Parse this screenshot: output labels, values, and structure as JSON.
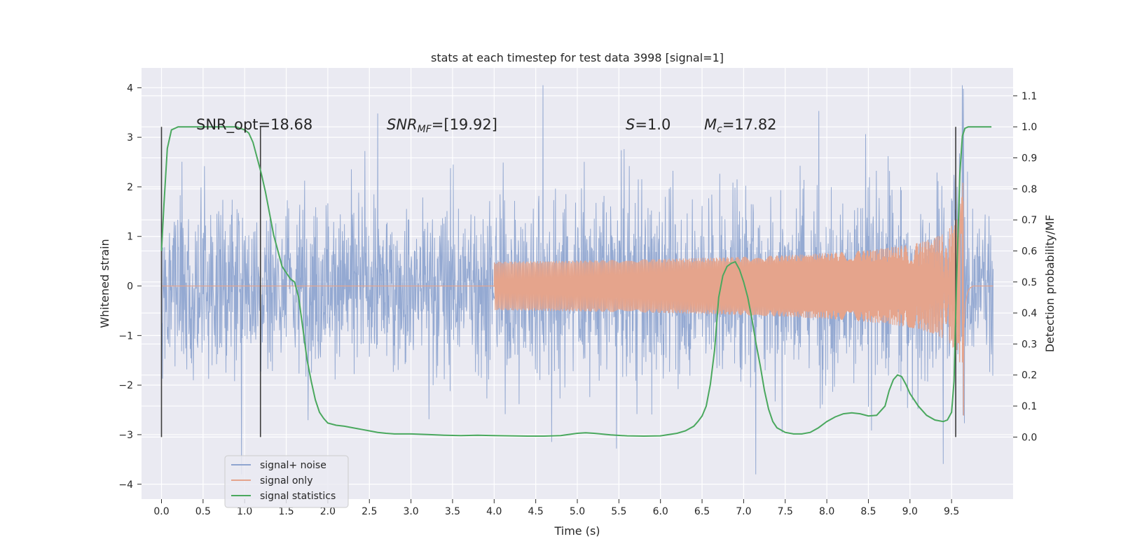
{
  "chart_data": {
    "type": "line",
    "title": "stats at each timestep for test data 3998 [signal=1]",
    "xlabel": "Time (s)",
    "ylabel_left": "Whitened strain",
    "ylabel_right": "Detection probability/MF",
    "xlim": [
      -0.24,
      10.24
    ],
    "ylim_left": [
      -4.3,
      4.4
    ],
    "ylim_right": [
      -0.2,
      1.19
    ],
    "x_ticks": [
      "0.0",
      "0.5",
      "1.0",
      "1.5",
      "2.0",
      "2.5",
      "3.0",
      "3.5",
      "4.0",
      "4.5",
      "5.0",
      "5.5",
      "6.0",
      "6.5",
      "7.0",
      "7.5",
      "8.0",
      "8.5",
      "9.0",
      "9.5"
    ],
    "y_ticks_left": [
      "4",
      "3",
      "2",
      "1",
      "0",
      "−1",
      "−2",
      "−3",
      "−4"
    ],
    "y_ticks_right": [
      "1.1",
      "1.0",
      "0.9",
      "0.8",
      "0.7",
      "0.6",
      "0.5",
      "0.4",
      "0.3",
      "0.2",
      "0.1",
      "0.0"
    ],
    "grid": true,
    "legend_position": "lower-left",
    "annotations": {
      "snr_opt": "SNR_opt=18.68",
      "snr_mf_base": "SNR",
      "snr_mf_sub": "MF",
      "snr_mf_value": "=[19.92]",
      "s_var": "S",
      "s_value": "=1.0",
      "mc_var": "M",
      "mc_sub": "c",
      "mc_value": "=17.82"
    },
    "vlines_x": [
      0.0,
      1.19,
      9.55
    ],
    "series": [
      {
        "name": "signal+ noise",
        "color": "#8fa5d0",
        "axis": "left",
        "description_range": [
          0.0,
          10.0
        ],
        "envelope": {
          "core_sigma": 0.85,
          "peak_max": 4.05,
          "peak_min": -3.8
        }
      },
      {
        "name": "signal only",
        "color": "#e5a48c",
        "axis": "left",
        "chirp": {
          "start": 4.0,
          "merger": 9.65,
          "amp_merger": 3.0,
          "end": 9.75
        }
      },
      {
        "name": "signal statistics",
        "color": "#4aa85e",
        "axis": "right",
        "x": [
          0.0,
          0.03,
          0.07,
          0.12,
          0.2,
          0.3,
          0.5,
          0.7,
          0.9,
          1.0,
          1.05,
          1.1,
          1.15,
          1.2,
          1.25,
          1.3,
          1.35,
          1.4,
          1.45,
          1.5,
          1.55,
          1.6,
          1.65,
          1.7,
          1.75,
          1.8,
          1.85,
          1.9,
          1.95,
          2.0,
          2.1,
          2.2,
          2.3,
          2.4,
          2.5,
          2.6,
          2.7,
          2.8,
          2.9,
          3.0,
          3.2,
          3.4,
          3.6,
          3.8,
          4.0,
          4.2,
          4.4,
          4.6,
          4.8,
          5.0,
          5.1,
          5.2,
          5.4,
          5.6,
          5.8,
          6.0,
          6.2,
          6.3,
          6.4,
          6.45,
          6.5,
          6.55,
          6.6,
          6.65,
          6.7,
          6.75,
          6.8,
          6.85,
          6.9,
          6.95,
          7.0,
          7.05,
          7.1,
          7.15,
          7.2,
          7.25,
          7.3,
          7.35,
          7.4,
          7.5,
          7.6,
          7.7,
          7.8,
          7.9,
          8.0,
          8.1,
          8.2,
          8.3,
          8.4,
          8.5,
          8.6,
          8.7,
          8.75,
          8.8,
          8.85,
          8.9,
          8.95,
          9.0,
          9.1,
          9.2,
          9.3,
          9.4,
          9.45,
          9.5,
          9.53,
          9.56,
          9.6,
          9.63,
          9.66,
          9.7,
          9.8,
          9.9,
          9.98
        ],
        "y": [
          0.6,
          0.75,
          0.93,
          0.99,
          1.0,
          1.0,
          1.0,
          1.0,
          1.0,
          0.99,
          0.98,
          0.95,
          0.9,
          0.85,
          0.79,
          0.72,
          0.65,
          0.6,
          0.55,
          0.53,
          0.51,
          0.5,
          0.45,
          0.35,
          0.25,
          0.18,
          0.12,
          0.08,
          0.06,
          0.045,
          0.038,
          0.035,
          0.03,
          0.025,
          0.02,
          0.015,
          0.012,
          0.01,
          0.01,
          0.01,
          0.008,
          0.006,
          0.005,
          0.006,
          0.005,
          0.004,
          0.003,
          0.003,
          0.005,
          0.012,
          0.014,
          0.012,
          0.007,
          0.004,
          0.003,
          0.004,
          0.012,
          0.02,
          0.035,
          0.05,
          0.068,
          0.1,
          0.17,
          0.28,
          0.45,
          0.52,
          0.55,
          0.56,
          0.565,
          0.54,
          0.5,
          0.45,
          0.38,
          0.3,
          0.23,
          0.15,
          0.09,
          0.05,
          0.03,
          0.015,
          0.01,
          0.01,
          0.015,
          0.03,
          0.05,
          0.065,
          0.075,
          0.078,
          0.075,
          0.068,
          0.07,
          0.1,
          0.15,
          0.185,
          0.2,
          0.195,
          0.17,
          0.14,
          0.1,
          0.07,
          0.055,
          0.05,
          0.055,
          0.08,
          0.18,
          0.5,
          0.85,
          0.97,
          0.995,
          1.0,
          1.0,
          1.0,
          1.0
        ]
      }
    ]
  }
}
